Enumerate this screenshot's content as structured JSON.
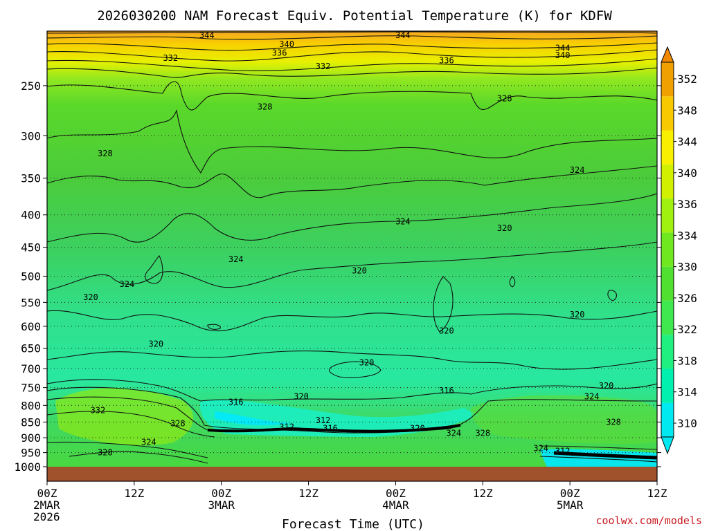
{
  "chart_data": {
    "type": "heatmap",
    "title": "2026030200 NAM Forecast Equiv. Potential Temperature (K) for KDFW",
    "xlabel": "Forecast Time (UTC)",
    "ylabel": "",
    "credit": "coolwx.com/models",
    "y_axis": {
      "scale": "log-pressure",
      "range": [
        1000,
        205
      ],
      "ticks": [
        250,
        300,
        350,
        400,
        450,
        500,
        550,
        600,
        650,
        700,
        750,
        800,
        850,
        900,
        950,
        1000
      ],
      "tick_labels": [
        "250",
        "300",
        "350",
        "400",
        "450",
        "500",
        "550",
        "600",
        "650",
        "700",
        "750",
        "800",
        "850",
        "900",
        "950",
        "1000"
      ]
    },
    "x_axis": {
      "range_hours": [
        0,
        84
      ],
      "ticks": [
        {
          "hour": 0,
          "lines": [
            "00Z",
            "2MAR",
            "2026"
          ]
        },
        {
          "hour": 12,
          "lines": [
            "12Z"
          ]
        },
        {
          "hour": 24,
          "lines": [
            "00Z",
            "3MAR"
          ]
        },
        {
          "hour": 36,
          "lines": [
            "12Z"
          ]
        },
        {
          "hour": 48,
          "lines": [
            "00Z",
            "4MAR"
          ]
        },
        {
          "hour": 60,
          "lines": [
            "12Z"
          ]
        },
        {
          "hour": 72,
          "lines": [
            "00Z",
            "5MAR"
          ]
        },
        {
          "hour": 84,
          "lines": [
            "12Z"
          ]
        }
      ]
    },
    "colorbar": {
      "levels": [
        310,
        314,
        318,
        322,
        326,
        330,
        334,
        336,
        340,
        344,
        348,
        352
      ],
      "labels": [
        "310",
        "314",
        "318",
        "322",
        "326",
        "330",
        "334",
        "336",
        "340",
        "344",
        "348",
        "352"
      ],
      "colors": [
        "#00e8f0",
        "#00f0b0",
        "#20f080",
        "#40e850",
        "#50e030",
        "#70e820",
        "#a0f010",
        "#d0f000",
        "#f8f000",
        "#f8c800",
        "#f0a000",
        "#f08800"
      ]
    },
    "contour_labels": [
      {
        "value": "344",
        "hour": 22,
        "p": 208
      },
      {
        "value": "344",
        "hour": 49,
        "p": 208
      },
      {
        "value": "344",
        "hour": 71,
        "p": 218
      },
      {
        "value": "340",
        "hour": 33,
        "p": 215
      },
      {
        "value": "340",
        "hour": 71,
        "p": 224
      },
      {
        "value": "336",
        "hour": 32,
        "p": 222
      },
      {
        "value": "336",
        "hour": 55,
        "p": 228
      },
      {
        "value": "332",
        "hour": 17,
        "p": 226
      },
      {
        "value": "332",
        "hour": 38,
        "p": 233
      },
      {
        "value": "328",
        "hour": 30,
        "p": 270
      },
      {
        "value": "328",
        "hour": 63,
        "p": 262
      },
      {
        "value": "328",
        "hour": 8,
        "p": 320
      },
      {
        "value": "324",
        "hour": 73,
        "p": 340
      },
      {
        "value": "324",
        "hour": 49,
        "p": 410
      },
      {
        "value": "324",
        "hour": 26,
        "p": 470
      },
      {
        "value": "324",
        "hour": 11,
        "p": 515
      },
      {
        "value": "320",
        "hour": 43,
        "p": 490
      },
      {
        "value": "320",
        "hour": 63,
        "p": 420
      },
      {
        "value": "320",
        "hour": 6,
        "p": 540
      },
      {
        "value": "320",
        "hour": 73,
        "p": 575
      },
      {
        "value": "320",
        "hour": 55,
        "p": 610
      },
      {
        "value": "320",
        "hour": 15,
        "p": 640
      },
      {
        "value": "320",
        "hour": 44,
        "p": 685
      },
      {
        "value": "320",
        "hour": 77,
        "p": 745
      },
      {
        "value": "320",
        "hour": 35,
        "p": 775
      },
      {
        "value": "324",
        "hour": 75,
        "p": 775
      },
      {
        "value": "316",
        "hour": 26,
        "p": 790
      },
      {
        "value": "316",
        "hour": 55,
        "p": 758
      },
      {
        "value": "312",
        "hour": 38,
        "p": 845
      },
      {
        "value": "316",
        "hour": 39,
        "p": 870
      },
      {
        "value": "312",
        "hour": 33,
        "p": 865
      },
      {
        "value": "320",
        "hour": 51,
        "p": 870
      },
      {
        "value": "324",
        "hour": 56,
        "p": 885
      },
      {
        "value": "328",
        "hour": 60,
        "p": 885
      },
      {
        "value": "332",
        "hour": 7,
        "p": 815
      },
      {
        "value": "328",
        "hour": 18,
        "p": 855
      },
      {
        "value": "328",
        "hour": 78,
        "p": 850
      },
      {
        "value": "324",
        "hour": 14,
        "p": 915
      },
      {
        "value": "328",
        "hour": 8,
        "p": 950
      },
      {
        "value": "324",
        "hour": 68,
        "p": 935
      },
      {
        "value": "312",
        "hour": 71,
        "p": 945
      }
    ]
  }
}
